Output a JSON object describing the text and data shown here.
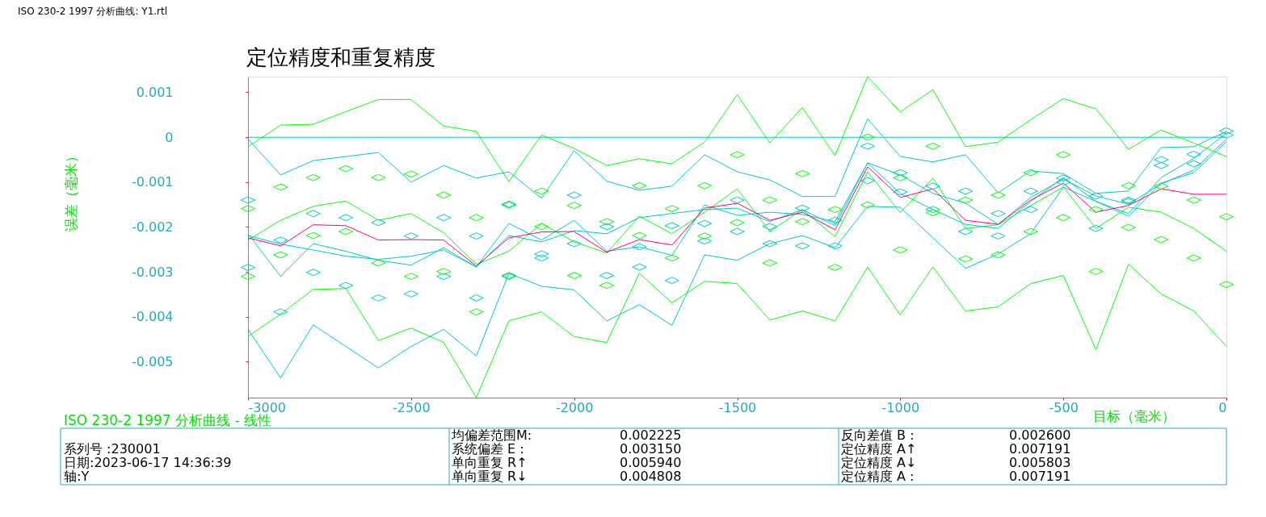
{
  "chart_data": {
    "type": "line",
    "title": "定位精度和重复精度",
    "xlabel": "目标（毫米）",
    "ylabel": "误差（毫米）",
    "x": [
      -3000,
      -2900,
      -2800,
      -2700,
      -2600,
      -2500,
      -2400,
      -2300,
      -2200,
      -2100,
      -2000,
      -1900,
      -1800,
      -1700,
      -1600,
      -1500,
      -1400,
      -1300,
      -1200,
      -1100,
      -1000,
      -900,
      -800,
      -700,
      -600,
      -500,
      -400,
      -300,
      -200,
      -100,
      0
    ],
    "xlim": [
      -3000,
      0
    ],
    "xticks": [
      -3000,
      -2500,
      -2000,
      -1500,
      -1000,
      -500,
      0
    ],
    "ylim": [
      -0.0058,
      0.00135
    ],
    "yticks": [
      0.001,
      0,
      -0.001,
      -0.002,
      -0.003,
      -0.004,
      -0.005
    ],
    "ref_lines": [
      {
        "axis": "y",
        "value": 0,
        "color": "#00c8c8"
      }
    ],
    "series": [
      {
        "color": "#00ff00",
        "values": [
          -0.00021,
          0.00027,
          0.00029,
          0.00057,
          0.00084,
          0.00084,
          0.00025,
          0.00013,
          -0.00099,
          5e-05,
          -0.00025,
          -0.00063,
          -0.00048,
          -0.00059,
          -0.00011,
          0.00095,
          -0.00013,
          0.00066,
          -0.00041,
          0.00135,
          0.00056,
          0.00106,
          -0.00021,
          -0.00011,
          0.00039,
          0.00086,
          0.00063,
          -0.00027,
          0.00016,
          -0.00013,
          -0.00043
        ]
      },
      {
        "color": "#00c8c8",
        "values": [
          -4e-05,
          -0.00084,
          -0.00052,
          -0.00043,
          -0.00034,
          -0.001,
          -0.00063,
          -0.00091,
          -0.00077,
          -0.00136,
          -0.0003,
          -0.00098,
          -0.00118,
          -0.00109,
          -0.00039,
          -0.00077,
          -0.00095,
          -0.00132,
          -0.00132,
          0.00041,
          -0.00043,
          -0.00055,
          -0.00039,
          -0.00124,
          -0.00075,
          -0.00081,
          -0.00125,
          -0.0012,
          -0.00023,
          -0.00021,
          0.00013
        ]
      },
      {
        "color": "#00ff00",
        "values": [
          -0.00229,
          -0.00185,
          -0.00154,
          -0.00142,
          -0.00185,
          -0.0017,
          -0.00213,
          -0.00283,
          -0.00254,
          -0.00192,
          -0.00233,
          -0.00258,
          -0.00176,
          -0.00215,
          -0.00167,
          -0.00115,
          -0.0021,
          -0.00161,
          -0.00222,
          -0.00077,
          -0.00168,
          -0.00091,
          -0.00203,
          -0.00195,
          -0.00152,
          -0.00111,
          -0.00203,
          -0.00156,
          -0.00167,
          -0.00203,
          -0.00254
        ]
      },
      {
        "color": "#00c8c8",
        "values": [
          -0.00215,
          -0.0031,
          -0.00237,
          -0.00254,
          -0.00274,
          -0.00285,
          -0.00246,
          -0.00289,
          -0.00192,
          -0.00229,
          -0.00185,
          -0.00254,
          -0.00244,
          -0.00263,
          -0.00151,
          -0.00174,
          -0.00167,
          -0.00172,
          -0.00188,
          -0.00057,
          -0.00084,
          -0.00125,
          -0.00147,
          -0.00194,
          -0.00134,
          -0.00093,
          -0.00131,
          -0.00149,
          -0.00104,
          -0.00073,
          -4e-05
        ]
      },
      {
        "color": "#00c8c8",
        "values": [
          -0.00219,
          -0.00238,
          -0.00251,
          -0.00265,
          -0.00272,
          -0.00265,
          -0.00251,
          -0.00289,
          -0.00219,
          -0.00233,
          -0.00208,
          -0.00215,
          -0.00179,
          -0.0017,
          -0.00161,
          -0.00158,
          -0.00188,
          -0.00161,
          -0.00197,
          -0.00057,
          -0.00125,
          -0.00161,
          -0.00194,
          -0.00203,
          -0.00143,
          -0.0009,
          -0.00143,
          -0.0017,
          -0.0009,
          -0.00047,
          9e-05
        ]
      },
      {
        "color": "#ff0080",
        "values": [
          -0.00224,
          -0.00242,
          -0.00195,
          -0.00197,
          -0.00229,
          -0.00228,
          -0.00229,
          -0.00287,
          -0.00224,
          -0.00211,
          -0.0021,
          -0.00256,
          -0.00228,
          -0.0024,
          -0.00158,
          -0.00147,
          -0.00185,
          -0.00167,
          -0.00206,
          -0.00066,
          -0.00134,
          -0.00115,
          -0.00185,
          -0.00194,
          -0.0014,
          -0.00102,
          -0.00167,
          -0.00152,
          -0.00115,
          -0.00127,
          -0.00127
        ]
      },
      {
        "color": "#00c8c8",
        "values": [
          -0.00428,
          -0.00536,
          -0.00418,
          -0.00466,
          -0.00514,
          -0.00466,
          -0.00428,
          -0.00487,
          -0.00303,
          -0.00332,
          -0.0034,
          -0.00409,
          -0.00373,
          -0.00419,
          -0.00262,
          -0.00274,
          -0.00237,
          -0.00219,
          -0.00246,
          -0.00154,
          -0.00156,
          -0.00224,
          -0.00292,
          -0.0026,
          -0.00215,
          -0.00111,
          -0.00143,
          -0.00176,
          -0.00102,
          -0.00079,
          -9e-05
        ]
      },
      {
        "color": "#00ff00",
        "values": [
          -0.00444,
          -0.00394,
          -0.00339,
          -0.00337,
          -0.00453,
          -0.00425,
          -0.00457,
          -0.0058,
          -0.00409,
          -0.00389,
          -0.00444,
          -0.00457,
          -0.00303,
          -0.00369,
          -0.00321,
          -0.00326,
          -0.00407,
          -0.00387,
          -0.00409,
          -0.00289,
          -0.00396,
          -0.00289,
          -0.00387,
          -0.00378,
          -0.00326,
          -0.00308,
          -0.00473,
          -0.00283,
          -0.00349,
          -0.00387,
          -0.00466
        ]
      },
      {
        "type": "scatter",
        "marker": "diamond",
        "color": "#00ff00",
        "values": [
          -0.00159,
          -0.00111,
          -0.0009,
          -0.0007,
          -0.0009,
          -0.00082,
          -0.00129,
          -0.00179,
          -0.00149,
          -0.0012,
          -0.00152,
          -0.00188,
          -0.00108,
          -0.00159,
          -0.00108,
          -0.00039,
          -0.0014,
          -0.00081,
          -0.00161,
          0,
          -0.0009,
          -0.0002,
          -0.0014,
          -0.00129,
          -0.00079,
          -0.00039,
          -0.00161,
          -0.00108,
          -0.00109,
          -0.0014,
          -0.00177
        ]
      },
      {
        "type": "scatter",
        "marker": "diamond",
        "color": "#00ff00",
        "values": [
          -0.0031,
          -0.00262,
          -0.00219,
          -0.0021,
          -0.0028,
          -0.0031,
          -0.00299,
          -0.00389,
          -0.0031,
          -0.00199,
          -0.00308,
          -0.0033,
          -0.00219,
          -0.00269,
          -0.0022,
          -0.0019,
          -0.0028,
          -0.00188,
          -0.0029,
          -0.00151,
          -0.00251,
          -0.00168,
          -0.00271,
          -0.00262,
          -0.0021,
          -0.00179,
          -0.00299,
          -0.00201,
          -0.00228,
          -0.00269,
          -0.00328
        ]
      },
      {
        "type": "scatter",
        "marker": "diamond",
        "color": "#00c8c8",
        "values": [
          -0.0014,
          -0.00229,
          -0.0017,
          -0.00179,
          -0.0019,
          -0.0022,
          -0.00179,
          -0.0022,
          -0.00151,
          -0.0026,
          -0.00129,
          -0.00199,
          -0.00244,
          -0.00197,
          -0.00192,
          -0.0014,
          -0.00199,
          -0.00158,
          -0.00185,
          -0.0002,
          -0.00079,
          -0.00109,
          -0.0012,
          -0.0017,
          -0.0012,
          -0.00091,
          -0.00131,
          -0.00143,
          -0.0005,
          -0.00038,
          0.00014
        ]
      },
      {
        "type": "scatter",
        "marker": "diamond",
        "color": "#00c8c8",
        "values": [
          -0.0029,
          -0.00389,
          -0.00301,
          -0.0033,
          -0.00358,
          -0.00349,
          -0.0031,
          -0.00358,
          -0.00308,
          -0.00269,
          -0.00237,
          -0.00308,
          -0.00289,
          -0.00319,
          -0.00231,
          -0.0021,
          -0.00237,
          -0.00242,
          -0.00242,
          -0.00097,
          -0.00122,
          -0.00161,
          -0.0021,
          -0.0022,
          -0.00161,
          -0.001,
          -0.00203,
          -0.0014,
          -0.00063,
          -0.00059,
          5e-05
        ]
      }
    ],
    "annotations": [
      "ISO 230-2 1997 分析曲线: Y1.rtl",
      "ISO 230-2 1997 分析曲线 - 线性",
      "系列号    :230001",
      "日期:2023-06-17 14:36:39",
      "轴:Y",
      "均偏差范围M:",
      "0.002225",
      "系统偏差 E :",
      "0.003150",
      "单向重复 R↑",
      "0.005940",
      "单向重复 R↓",
      "0.004808",
      "反向差值 B :",
      "0.002600",
      "定位精度 A↑",
      "0.007191",
      "定位精度 A↓",
      "0.005803",
      "定位精度 A :",
      "0.007191"
    ]
  }
}
